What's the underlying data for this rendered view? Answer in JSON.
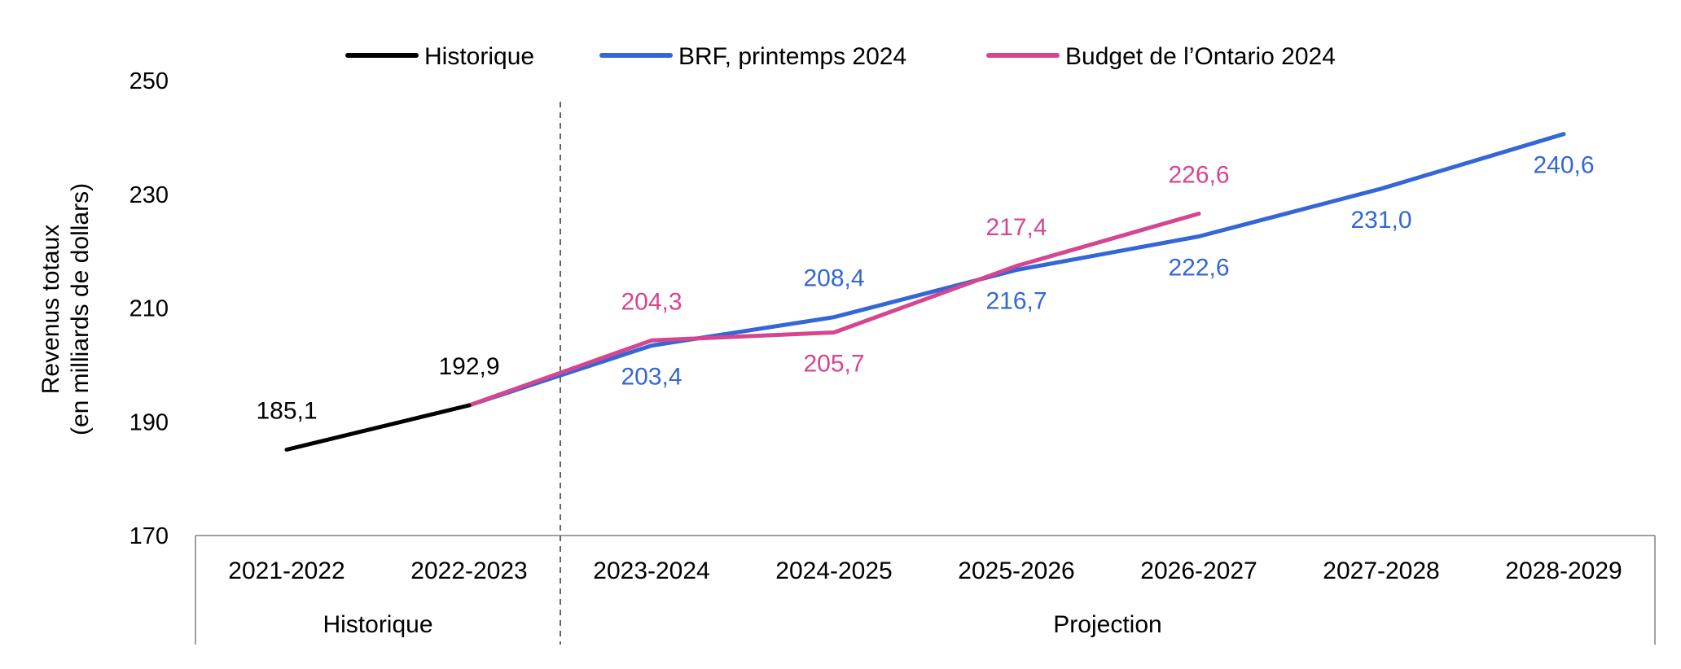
{
  "chart_data": {
    "type": "line",
    "title": "",
    "xlabel": "",
    "ylabel": [
      "Revenus totaux",
      "(en milliards de dollars)"
    ],
    "ylim": [
      170,
      250
    ],
    "yticks": [
      170,
      190,
      210,
      230,
      250
    ],
    "grid": false,
    "legend_position": "top",
    "categories": [
      "2021-2022",
      "2022-2023",
      "2023-2024",
      "2024-2025",
      "2025-2026",
      "2026-2027",
      "2027-2028",
      "2028-2029"
    ],
    "groups": [
      {
        "label": "Historique",
        "from": 0,
        "to": 1
      },
      {
        "label": "Projection",
        "from": 2,
        "to": 7
      }
    ],
    "series": [
      {
        "name": "Historique",
        "color": "#000000",
        "points": [
          {
            "x": "2021-2022",
            "y": 185.1,
            "label": "185,1",
            "label_pos": "above"
          },
          {
            "x": "2022-2023",
            "y": 192.9,
            "label": "192,9",
            "label_pos": "above"
          }
        ]
      },
      {
        "name": "BRF, printemps 2024",
        "color": "#3366D6",
        "points": [
          {
            "x": "2022-2023",
            "y": 192.9,
            "label": "",
            "label_pos": "none"
          },
          {
            "x": "2023-2024",
            "y": 203.4,
            "label": "203,4",
            "label_pos": "below"
          },
          {
            "x": "2024-2025",
            "y": 208.4,
            "label": "208,4",
            "label_pos": "above"
          },
          {
            "x": "2025-2026",
            "y": 216.7,
            "label": "216,7",
            "label_pos": "below"
          },
          {
            "x": "2026-2027",
            "y": 222.6,
            "label": "222,6",
            "label_pos": "below"
          },
          {
            "x": "2027-2028",
            "y": 231.0,
            "label": "231,0",
            "label_pos": "below"
          },
          {
            "x": "2028-2029",
            "y": 240.6,
            "label": "240,6",
            "label_pos": "below"
          }
        ]
      },
      {
        "name": "Budget de l’Ontario 2024",
        "color": "#D6458F",
        "points": [
          {
            "x": "2022-2023",
            "y": 192.9,
            "label": "",
            "label_pos": "none"
          },
          {
            "x": "2023-2024",
            "y": 204.3,
            "label": "204,3",
            "label_pos": "above"
          },
          {
            "x": "2024-2025",
            "y": 205.7,
            "label": "205,7",
            "label_pos": "below"
          },
          {
            "x": "2025-2026",
            "y": 217.4,
            "label": "217,4",
            "label_pos": "above"
          },
          {
            "x": "2026-2027",
            "y": 226.6,
            "label": "226,6",
            "label_pos": "above"
          }
        ]
      }
    ]
  }
}
